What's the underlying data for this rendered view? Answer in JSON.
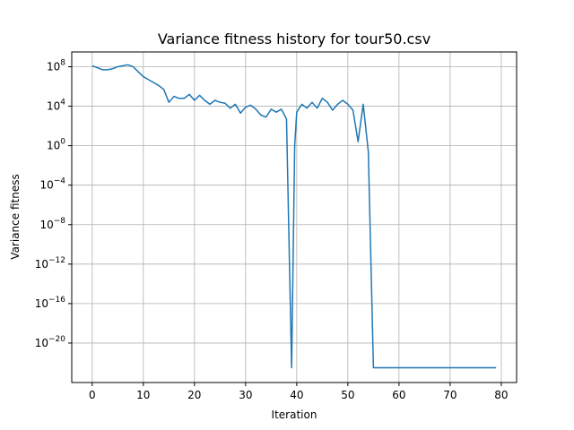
{
  "chart_data": {
    "type": "line",
    "title": "Variance fitness history for tour50.csv",
    "xlabel": "Iteration",
    "ylabel": "Variance fitness",
    "xlim": [
      -4,
      83
    ],
    "ylim_log10": [
      -24,
      9.5
    ],
    "y_scale": "log",
    "grid": true,
    "x_ticks": [
      0,
      10,
      20,
      30,
      40,
      50,
      60,
      70,
      80
    ],
    "y_ticks": [
      {
        "exp": 8,
        "base": "10",
        "sup": "8"
      },
      {
        "exp": 4,
        "base": "10",
        "sup": "4"
      },
      {
        "exp": 0,
        "base": "10",
        "sup": "0"
      },
      {
        "exp": -4,
        "base": "10",
        "sup": "−4"
      },
      {
        "exp": -8,
        "base": "10",
        "sup": "−8"
      },
      {
        "exp": -12,
        "base": "10",
        "sup": "−12"
      },
      {
        "exp": -16,
        "base": "10",
        "sup": "−16"
      },
      {
        "exp": -20,
        "base": "10",
        "sup": "−20"
      }
    ],
    "series": [
      {
        "color": "#1f77b4",
        "x": [
          0,
          1,
          2,
          3,
          4,
          5,
          6,
          7,
          8,
          9,
          10,
          11,
          12,
          13,
          14,
          15,
          16,
          17,
          18,
          19,
          20,
          21,
          22,
          23,
          24,
          25,
          26,
          27,
          28,
          29,
          30,
          31,
          32,
          33,
          34,
          35,
          36,
          37,
          38,
          39,
          39.6,
          40,
          41,
          42,
          43,
          44,
          45,
          46,
          47,
          48,
          49,
          50,
          51,
          52,
          53,
          54,
          55,
          56,
          57,
          58,
          59,
          60,
          61,
          62,
          63,
          64,
          65,
          66,
          67,
          68,
          69,
          70,
          71,
          72,
          73,
          74,
          75,
          76,
          77,
          78,
          79
        ],
        "log10_y": [
          8.1,
          7.9,
          7.7,
          7.7,
          7.8,
          8.0,
          8.1,
          8.2,
          8.0,
          7.5,
          7.0,
          6.7,
          6.4,
          6.1,
          5.7,
          4.4,
          5.0,
          4.8,
          4.8,
          5.2,
          4.6,
          5.1,
          4.6,
          4.2,
          4.6,
          4.4,
          4.3,
          3.8,
          4.2,
          3.3,
          3.9,
          4.1,
          3.7,
          3.1,
          2.9,
          3.7,
          3.4,
          3.7,
          2.7,
          -22.5,
          0.0,
          3.4,
          4.2,
          3.8,
          4.4,
          3.8,
          4.8,
          4.4,
          3.6,
          4.2,
          4.6,
          4.2,
          3.6,
          0.4,
          4.2,
          -0.6,
          -22.5,
          -22.5,
          -22.5,
          -22.5,
          -22.5,
          -22.5,
          -22.5,
          -22.5,
          -22.5,
          -22.5,
          -22.5,
          -22.5,
          -22.5,
          -22.5,
          -22.5,
          -22.5,
          -22.5,
          -22.5,
          -22.5,
          -22.5,
          -22.5,
          -22.5,
          -22.5,
          -22.5,
          -22.5
        ]
      }
    ]
  }
}
